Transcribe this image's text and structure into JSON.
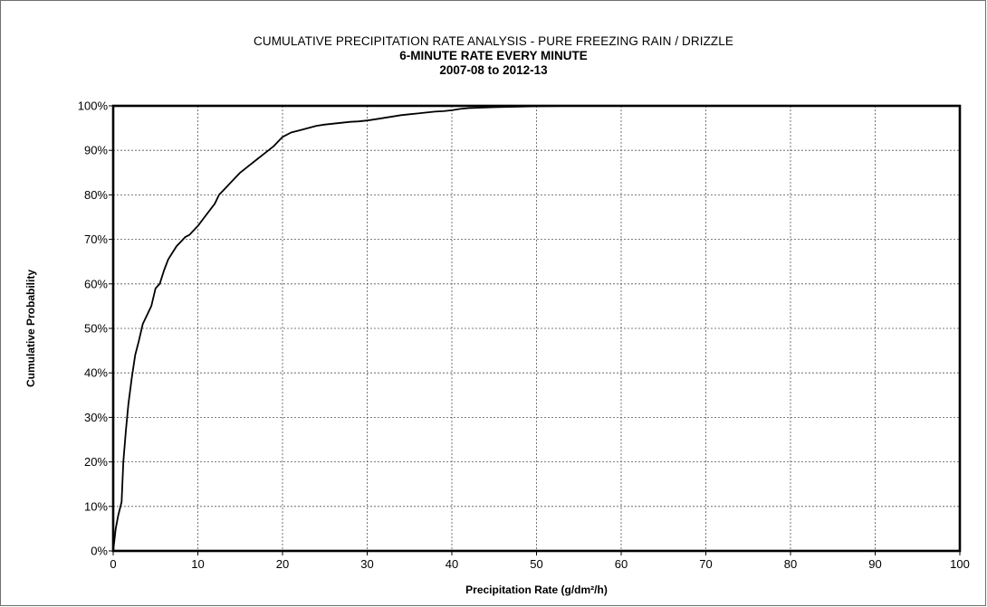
{
  "chart_data": {
    "type": "line",
    "title": "CUMULATIVE PRECIPITATION RATE ANALYSIS - PURE  FREEZING RAIN / DRIZZLE",
    "subtitle": "6-MINUTE RATE EVERY MINUTE",
    "subtitle2": "2007-08 to 2012-13",
    "xlabel": "Precipitation Rate (g/dm²/h)",
    "ylabel": "Cumulative Probability",
    "xlim": [
      0,
      100
    ],
    "ylim": [
      0,
      100
    ],
    "xticks": [
      0,
      10,
      20,
      30,
      40,
      50,
      60,
      70,
      80,
      90,
      100
    ],
    "xtick_labels": [
      "0",
      "10",
      "20",
      "30",
      "40",
      "50",
      "60",
      "70",
      "80",
      "90",
      "100"
    ],
    "yticks": [
      0,
      10,
      20,
      30,
      40,
      50,
      60,
      70,
      80,
      90,
      100
    ],
    "ytick_labels": [
      "0%",
      "10%",
      "20%",
      "30%",
      "40%",
      "50%",
      "60%",
      "70%",
      "80%",
      "90%",
      "100%"
    ],
    "grid": true,
    "legend": "none",
    "line_color": "#000000",
    "series": [
      {
        "x": [
          0,
          0.3,
          0.6,
          1.0,
          1.2,
          1.5,
          1.8,
          2.2,
          2.6,
          3.0,
          3.5,
          4.0,
          4.5,
          5.0,
          5.5,
          6.0,
          6.5,
          7.0,
          7.5,
          8.0,
          8.5,
          9.0,
          10.0,
          11.0,
          12.0,
          12.5,
          13.0,
          14.0,
          15.0,
          16.0,
          17.0,
          18.0,
          19.0,
          20.0,
          21.0,
          22.0,
          23.0,
          24.0,
          25.0,
          26.0,
          27.0,
          28.0,
          29.0,
          30.0,
          31.0,
          32.0,
          33.0,
          34.0,
          35.0,
          36.0,
          37.0,
          38.0,
          39.0,
          40.0,
          41.0,
          42.0,
          45.0,
          50.0,
          54.0
        ],
        "y": [
          0,
          5,
          8,
          11,
          20,
          27,
          33,
          39,
          44,
          47,
          51,
          53,
          55,
          59,
          60,
          63,
          65.5,
          67,
          68.5,
          69.5,
          70.5,
          71,
          73,
          75.5,
          78,
          80,
          81,
          83,
          85,
          86.5,
          88,
          89.5,
          91,
          93,
          94,
          94.5,
          95,
          95.5,
          95.8,
          96,
          96.2,
          96.4,
          96.5,
          96.7,
          97,
          97.3,
          97.6,
          97.9,
          98.1,
          98.3,
          98.5,
          98.7,
          98.8,
          99,
          99.3,
          99.5,
          99.7,
          99.9,
          100
        ]
      }
    ]
  }
}
